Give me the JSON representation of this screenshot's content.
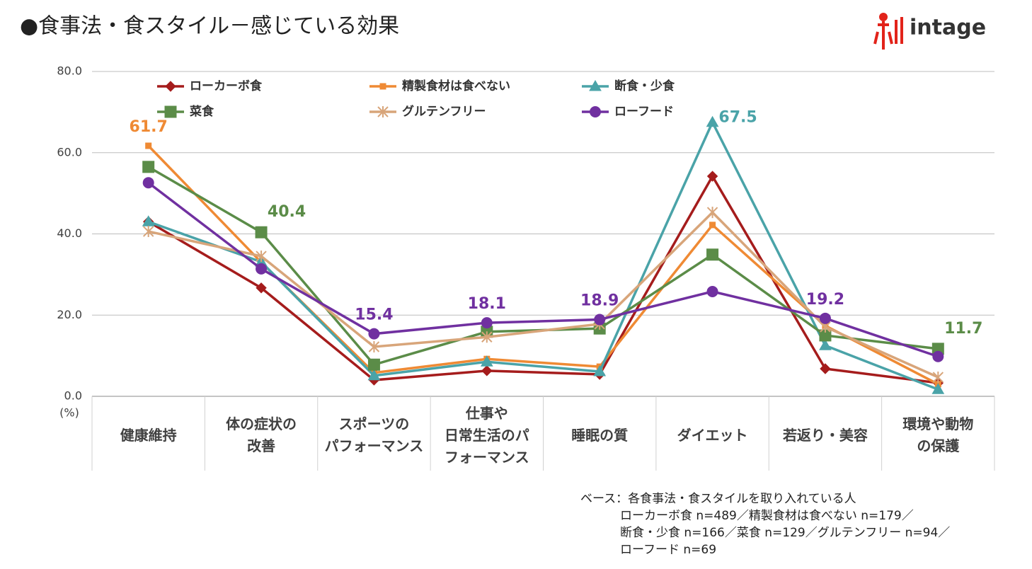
{
  "chart_data": {
    "type": "line",
    "title": "●食事法・食スタイル－感じている効果",
    "logo": "intage",
    "y_unit": "(%)",
    "categories": [
      "健康維持",
      "体の症状の\n改善",
      "スポーツの\nパフォーマンス",
      "仕事や\n日常生活のパ\nフォーマンス",
      "睡眠の質",
      "ダイエット",
      "若返り・美容",
      "環境や動物\nの保護"
    ],
    "ylim": [
      0,
      80
    ],
    "yticks": [
      {
        "value": 0,
        "label": "0.0"
      },
      {
        "value": 20,
        "label": "20.0"
      },
      {
        "value": 40,
        "label": "40.0"
      },
      {
        "value": 60,
        "label": "60.0"
      },
      {
        "value": 80,
        "label": "80.0"
      }
    ],
    "grid": true,
    "series": [
      {
        "name": "ローカーボ食",
        "color": "#a51c1c",
        "marker": "diamond",
        "values": [
          43.0,
          26.7,
          4.0,
          6.3,
          5.4,
          54.2,
          6.8,
          3.3
        ],
        "data_labels": []
      },
      {
        "name": "精製食材は食べない",
        "color": "#ef8a34",
        "marker": "small-square",
        "values": [
          61.7,
          33.0,
          5.8,
          9.2,
          7.3,
          42.2,
          17.4,
          3.0
        ],
        "data_labels": [
          0
        ]
      },
      {
        "name": "断食・少食",
        "color": "#4aa3a8",
        "marker": "triangle",
        "values": [
          43.0,
          33.1,
          5.1,
          8.5,
          6.1,
          67.5,
          12.5,
          1.7
        ],
        "data_labels": [
          5
        ]
      },
      {
        "name": "菜食",
        "color": "#5b8c48",
        "marker": "square",
        "values": [
          56.5,
          40.4,
          7.8,
          15.9,
          16.7,
          34.9,
          15.0,
          11.7
        ],
        "data_labels": [
          1,
          7
        ]
      },
      {
        "name": "グルテンフリー",
        "color": "#d8a57a",
        "marker": "asterisk",
        "values": [
          40.6,
          34.5,
          12.2,
          14.6,
          17.8,
          45.3,
          17.1,
          4.7
        ],
        "data_labels": []
      },
      {
        "name": "ローフード",
        "color": "#7030a0",
        "marker": "circle",
        "values": [
          52.6,
          31.4,
          15.4,
          18.1,
          18.9,
          25.8,
          19.2,
          9.8
        ],
        "data_labels": [
          2,
          3,
          4,
          6
        ]
      }
    ],
    "note": [
      "ベース：各食事法・食スタイルを取り入れている人",
      "ローカーボ食 n=489／精製食材は食べない n=179／",
      "断食・少食 n=166／菜食 n=129／グルテンフリー n=94／",
      "ローフード n=69"
    ]
  }
}
